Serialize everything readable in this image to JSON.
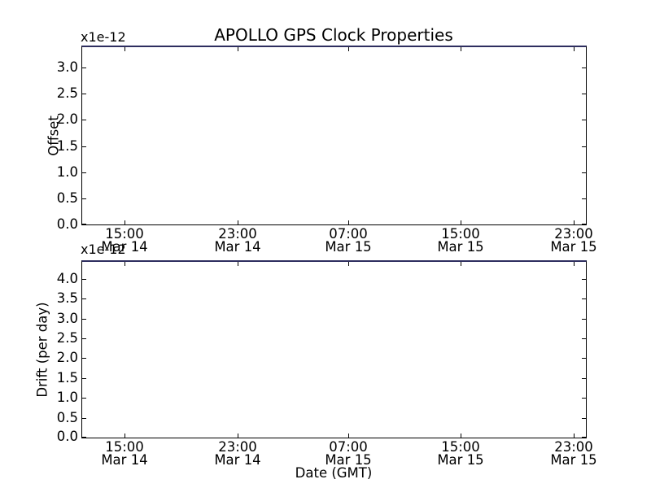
{
  "figure": {
    "title": "APOLLO GPS Clock Properties",
    "xlabel": "Date (GMT)",
    "background_color": "#ffffff",
    "spine_color": "#000000",
    "top_edge_line_color": "#2e2e5f",
    "top_plot": {
      "offset_text": "x1e-12",
      "ylabel": "Offset",
      "yticks": [
        "3.0",
        "2.5",
        "2.0",
        "1.5",
        "1.0",
        "0.5",
        "0.0"
      ]
    },
    "bottom_plot": {
      "offset_text": "x1e-12",
      "ylabel": "Drift (per day)",
      "yticks": [
        "4.0",
        "3.5",
        "3.0",
        "2.5",
        "2.0",
        "1.5",
        "1.0",
        "0.5",
        "0.0"
      ]
    },
    "xticks": [
      {
        "time": "15:00",
        "date": "Mar 14"
      },
      {
        "time": "23:00",
        "date": "Mar 14"
      },
      {
        "time": "07:00",
        "date": "Mar 15"
      },
      {
        "time": "15:00",
        "date": "Mar 15"
      },
      {
        "time": "23:00",
        "date": "Mar 15"
      }
    ]
  },
  "chart_data": [
    {
      "type": "line",
      "subplot": "top",
      "title": "APOLLO GPS Clock Properties",
      "xlabel": "",
      "ylabel": "Offset",
      "y_scale_text": "x1e-12",
      "x_tick_labels": [
        "15:00 Mar 14",
        "23:00 Mar 14",
        "07:00 Mar 15",
        "15:00 Mar 15",
        "23:00 Mar 15"
      ],
      "x_tick_interval_hours": 8,
      "y_ticks": [
        0.0,
        0.5,
        1.0,
        1.5,
        2.0,
        2.5,
        3.0
      ],
      "ylim": [
        0.0,
        3.4
      ],
      "grid": false,
      "legend": "none",
      "series": [],
      "note": "no data points visible inside axes; thin blue line rendered along the top spine"
    },
    {
      "type": "line",
      "subplot": "bottom",
      "title": "",
      "xlabel": "Date (GMT)",
      "ylabel": "Drift (per day)",
      "y_scale_text": "x1e-12",
      "x_tick_labels": [
        "15:00 Mar 14",
        "23:00 Mar 14",
        "07:00 Mar 15",
        "15:00 Mar 15",
        "23:00 Mar 15"
      ],
      "x_tick_interval_hours": 8,
      "y_ticks": [
        0.0,
        0.5,
        1.0,
        1.5,
        2.0,
        2.5,
        3.0,
        3.5,
        4.0
      ],
      "ylim": [
        0.0,
        4.4
      ],
      "grid": false,
      "legend": "none",
      "series": [],
      "note": "no data points visible inside axes; thin blue line rendered along the top spine"
    }
  ]
}
